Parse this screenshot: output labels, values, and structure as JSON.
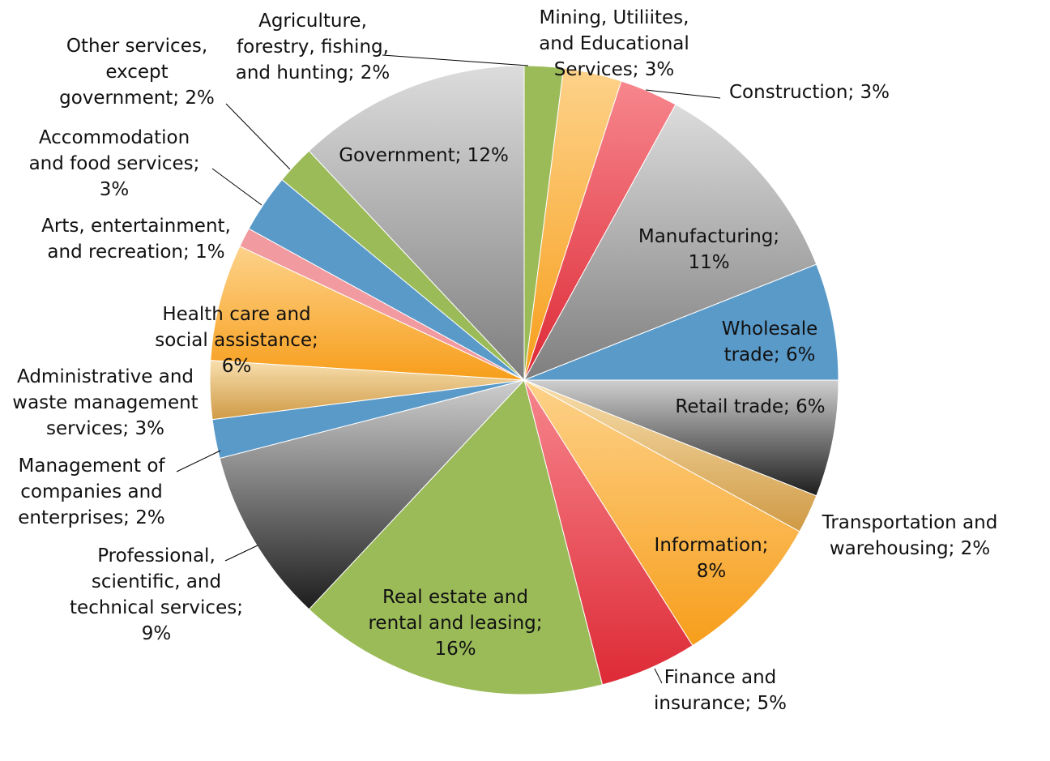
{
  "chart_data": {
    "type": "pie",
    "title": "",
    "slices": [
      {
        "label_lines": [
          "Agriculture,",
          "forestry, fishing,",
          "and hunting; 2%"
        ],
        "value": 2,
        "color": "#9bbb59",
        "style": "flat"
      },
      {
        "label_lines": [
          "Mining, Utiliites,",
          "and Educational",
          "Services; 3%"
        ],
        "value": 3,
        "color": "#f7a93a",
        "style": "orange"
      },
      {
        "label_lines": [
          "Construction; 3%"
        ],
        "value": 3,
        "color": "#e2414c",
        "style": "red"
      },
      {
        "label_lines": [
          "Manufacturing;",
          "11%"
        ],
        "value": 11,
        "color": "#c8c8c8",
        "style": "silver"
      },
      {
        "label_lines": [
          "Wholesale",
          "trade; 6%"
        ],
        "value": 6,
        "color": "#5a9ac9",
        "style": "flat"
      },
      {
        "label_lines": [
          "Retail trade; 6%"
        ],
        "value": 6,
        "color": "#6b6b6b",
        "style": "dark"
      },
      {
        "label_lines": [
          "Transportation and",
          "warehousing; 2%"
        ],
        "value": 2,
        "color": "#d4a04a",
        "style": "tan"
      },
      {
        "label_lines": [
          "Information;",
          "8%"
        ],
        "value": 8,
        "color": "#fbb040",
        "style": "orange"
      },
      {
        "label_lines": [
          "Finance and",
          "insurance; 5%"
        ],
        "value": 5,
        "color": "#e2414c",
        "style": "red"
      },
      {
        "label_lines": [
          "Real estate and",
          "rental and leasing;",
          "16%"
        ],
        "value": 16,
        "color": "#9bbb59",
        "style": "flat"
      },
      {
        "label_lines": [
          "Professional,",
          "scientific, and",
          "technical services;",
          "9%"
        ],
        "value": 9,
        "color": "#8a8a8a",
        "style": "dark"
      },
      {
        "label_lines": [
          "Management of",
          "companies and",
          "enterprises; 2%"
        ],
        "value": 2,
        "color": "#5a9ac9",
        "style": "flat"
      },
      {
        "label_lines": [
          "Administrative and",
          "waste management",
          "services; 3%"
        ],
        "value": 3,
        "color": "#f5cf8e",
        "style": "tan"
      },
      {
        "label_lines": [
          "Health care and",
          "social assistance;",
          "6%"
        ],
        "value": 6,
        "color": "#fdc56a",
        "style": "orange"
      },
      {
        "label_lines": [
          "Arts, entertainment,",
          "and recreation; 1%"
        ],
        "value": 1,
        "color": "#f19aa0",
        "style": "flat"
      },
      {
        "label_lines": [
          "Accommodation",
          "and food services;",
          "3%"
        ],
        "value": 3,
        "color": "#5a9ac9",
        "style": "flat"
      },
      {
        "label_lines": [
          "Other services,",
          "except",
          "government; 2%"
        ],
        "value": 2,
        "color": "#9bbb59",
        "style": "flat"
      },
      {
        "label_lines": [
          "Government; 12%"
        ],
        "value": 12,
        "color": "#a8a8a8",
        "style": "silver"
      }
    ],
    "legend": "none",
    "start": "top",
    "direction": "clockwise"
  }
}
